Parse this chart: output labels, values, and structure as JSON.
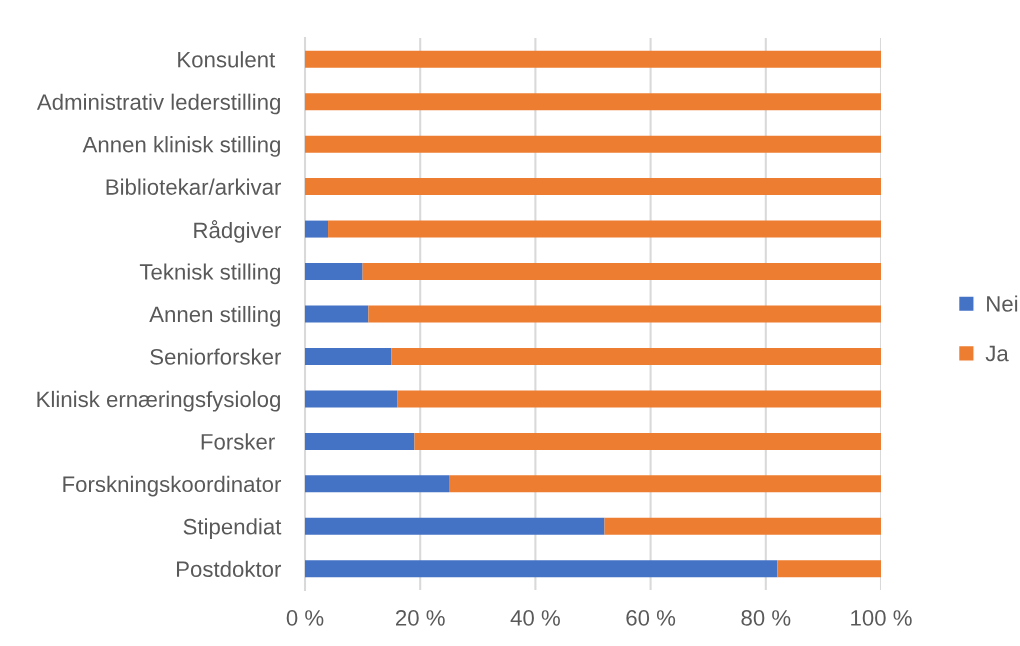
{
  "chart_data": {
    "type": "bar",
    "orientation": "horizontal",
    "stacked": true,
    "categories": [
      "Konsulent ",
      "Administrativ lederstilling",
      "Annen klinisk stilling",
      "Bibliotekar/arkivar",
      "Rådgiver",
      "Teknisk stilling",
      "Annen stilling",
      "Seniorforsker",
      "Klinisk ernæringsfysiolog",
      "Forsker ",
      "Forskningskoordinator",
      "Stipendiat",
      "Postdoktor"
    ],
    "series": [
      {
        "name": "Nei",
        "color": "#4472c4",
        "values": [
          0,
          0,
          0,
          0,
          4,
          10,
          11,
          15,
          16,
          19,
          25,
          52,
          82
        ]
      },
      {
        "name": "Ja",
        "color": "#ed7d31",
        "values": [
          100,
          100,
          100,
          100,
          96,
          90,
          89,
          85,
          84,
          81,
          75,
          48,
          18
        ]
      }
    ],
    "xlim": [
      0,
      100
    ],
    "xticks": [
      {
        "value": 0,
        "label": "0 %"
      },
      {
        "value": 20,
        "label": "20 %"
      },
      {
        "value": 40,
        "label": "40 %"
      },
      {
        "value": 60,
        "label": "60 %"
      },
      {
        "value": 80,
        "label": "80 %"
      },
      {
        "value": 100,
        "label": "100 %"
      }
    ],
    "grid": "x",
    "legend": "right"
  }
}
